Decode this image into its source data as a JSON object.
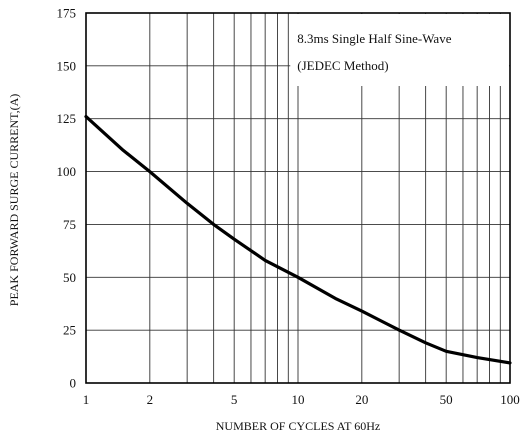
{
  "chart_data": {
    "type": "line",
    "title": "",
    "xlabel": "NUMBER OF CYCLES AT 60Hz",
    "ylabel": "PEAK FORWARD SURGE CURRENT,(A)",
    "xscale": "log",
    "xlim": [
      1,
      100
    ],
    "ylim": [
      0,
      175
    ],
    "grid": true,
    "x_tick_labels": [
      "1",
      "2",
      "5",
      "10",
      "20",
      "50",
      "100"
    ],
    "x_tick_values": [
      1,
      2,
      5,
      10,
      20,
      50,
      100
    ],
    "y_tick_labels": [
      "0",
      "25",
      "50",
      "75",
      "100",
      "125",
      "150",
      "175"
    ],
    "y_tick_values": [
      0,
      25,
      50,
      75,
      100,
      125,
      150,
      175
    ],
    "annotation": [
      "8.3ms Single Half Sine-Wave",
      "(JEDEC Method)"
    ],
    "annotation_placement": "top-right",
    "series": [
      {
        "x": [
          1,
          1.5,
          2,
          3,
          4,
          5,
          7,
          10,
          15,
          20,
          30,
          40,
          50,
          70,
          100
        ],
        "y": [
          126,
          110,
          100,
          85,
          75,
          68,
          58,
          50,
          40,
          34,
          25,
          19,
          15,
          12,
          9.5
        ]
      }
    ]
  }
}
